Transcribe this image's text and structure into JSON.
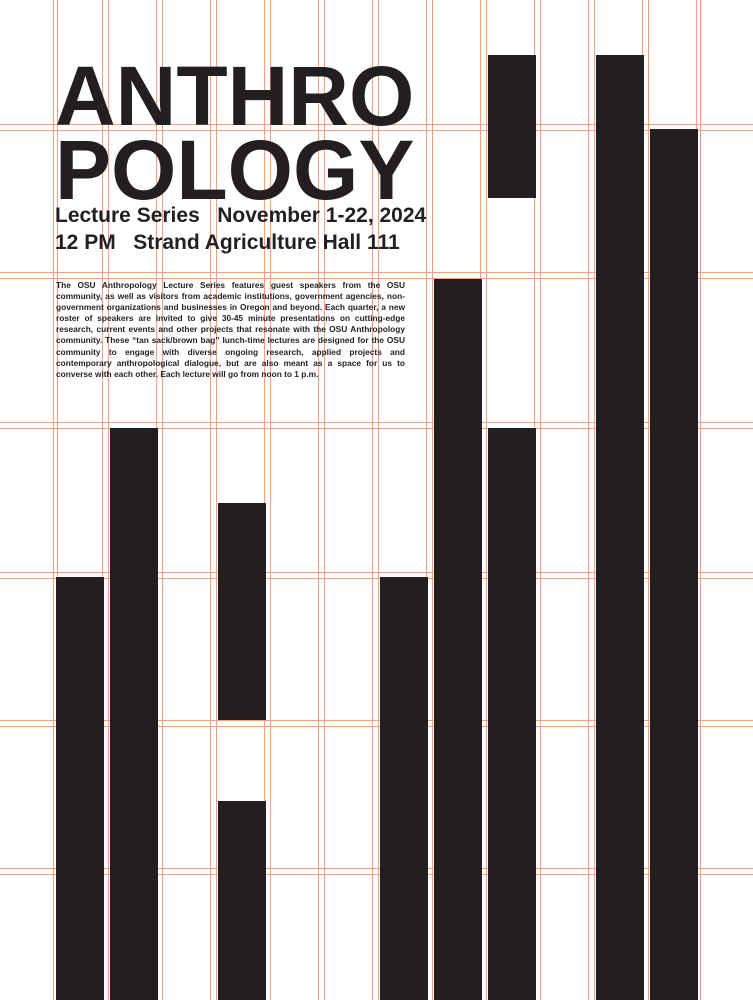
{
  "poster": {
    "title_line1": "ANTHRO",
    "title_line2": "POLOGY",
    "subtitle_line1": "Lecture Series   November 1-22, 2024",
    "subtitle_line2": "12 PM   Strand Agriculture Hall 111",
    "description": "The OSU Anthropology Lecture Series features guest speakers from the OSU community, as well as visitors from academic institutions, government agencies, non-government organizations and businesses in Oregon and beyond. Each quarter, a new roster of speakers are invited to give 30-45 minute presentations on cutting-edge research, current events and other projects that resonate with the OSU Anthropology community. These “tan sack/brown bag” lunch-time lectures are designed for the OSU community to engage with diverse ongoing research, applied projects and contemporary anthropological dialogue, but are also meant as a space for us to converse with each other. Each lecture will go from noon to 1 p.m."
  },
  "colors": {
    "ink": "#231f20",
    "grid": "#f2a184",
    "background": "#ffffff"
  }
}
